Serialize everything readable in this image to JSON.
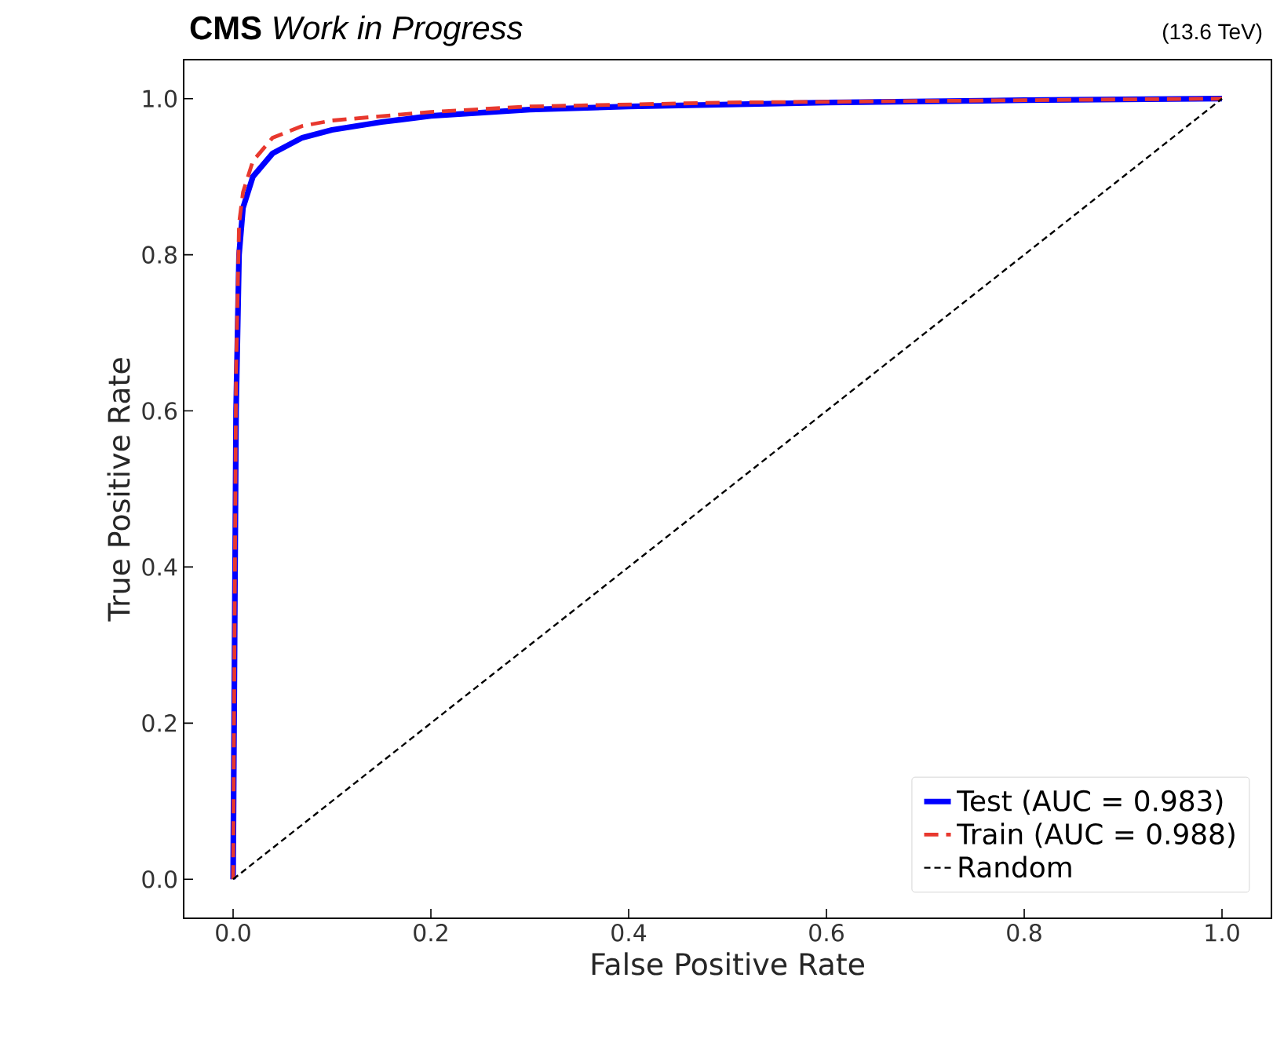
{
  "chart_data": {
    "type": "line",
    "title": "**CMS** *Work in Progress*",
    "subtitle": "(13.6 TeV)",
    "xlabel": "False Positive Rate",
    "ylabel": "True Positive Rate",
    "xlim": [
      -0.05,
      1.05
    ],
    "ylim": [
      -0.05,
      1.05
    ],
    "xticks": [
      {
        "value": 0,
        "label": "0.0"
      },
      0.2,
      0.4,
      0.6,
      0.8,
      {
        "value": 1,
        "label": "1.0"
      }
    ],
    "yticks": [
      {
        "value": 0,
        "label": "0.0"
      },
      0.2,
      0.4,
      0.6,
      0.8,
      {
        "value": 1,
        "label": "1.0"
      }
    ],
    "legend": "bottom right",
    "grid": false,
    "marker": "none",
    "series": [
      {
        "name": "Test (AUC = 0.983)",
        "color": "#0000ff",
        "line_style": "solid",
        "x": [
          0,
          0.003,
          0.006,
          0.01,
          0.02,
          0.04,
          0.07,
          0.1,
          0.15,
          0.2,
          0.3,
          0.4,
          0.6,
          0.8,
          1
        ],
        "values": [
          0,
          0.6,
          0.8,
          0.86,
          0.9,
          0.93,
          0.95,
          0.96,
          0.97,
          0.978,
          0.986,
          0.99,
          0.995,
          0.998,
          1
        ]
      },
      {
        "name": "Train (AUC = 0.988)",
        "color": "#e8382e",
        "line_style": "dashed",
        "x": [
          0,
          0.003,
          0.006,
          0.01,
          0.02,
          0.04,
          0.07,
          0.1,
          0.2,
          0.3,
          0.5,
          0.8,
          1
        ],
        "values": [
          0,
          0.65,
          0.84,
          0.88,
          0.92,
          0.95,
          0.965,
          0.972,
          0.983,
          0.99,
          0.995,
          0.998,
          1
        ]
      },
      {
        "name": "Random",
        "color": "#000000",
        "line_style": "dotted",
        "x": [
          0,
          1
        ],
        "values": [
          0,
          1
        ]
      }
    ]
  }
}
